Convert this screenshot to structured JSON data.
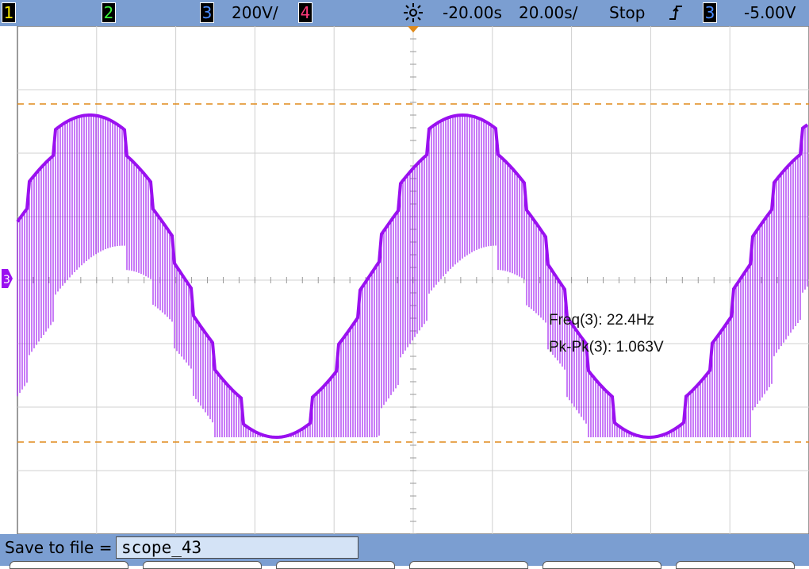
{
  "top_bar": {
    "channels": [
      {
        "num": "1",
        "color": "#f2e600"
      },
      {
        "num": "2",
        "color": "#3cf23c"
      },
      {
        "num": "3",
        "color": "#4a8cff"
      },
      {
        "num": "4",
        "color": "#ff3a7a"
      }
    ],
    "ch3_scale": "200​V/",
    "delay": "-20.00s",
    "timebase": "20.00s/",
    "run_state": "Stop",
    "trigger_source": "3",
    "trigger_level": "-5.00V"
  },
  "display": {
    "trace_color": "#9a10f0",
    "cursor_color": "#e08a1a",
    "channel_marker": "3",
    "grid_divisions": {
      "x": 10,
      "y": 8
    }
  },
  "measurements": {
    "freq": "Freq(3): 22.4Hz",
    "pkpk": "Pk-Pk(3): 1.063V"
  },
  "save": {
    "label": "Save to file =",
    "filename": "scope_43"
  }
}
